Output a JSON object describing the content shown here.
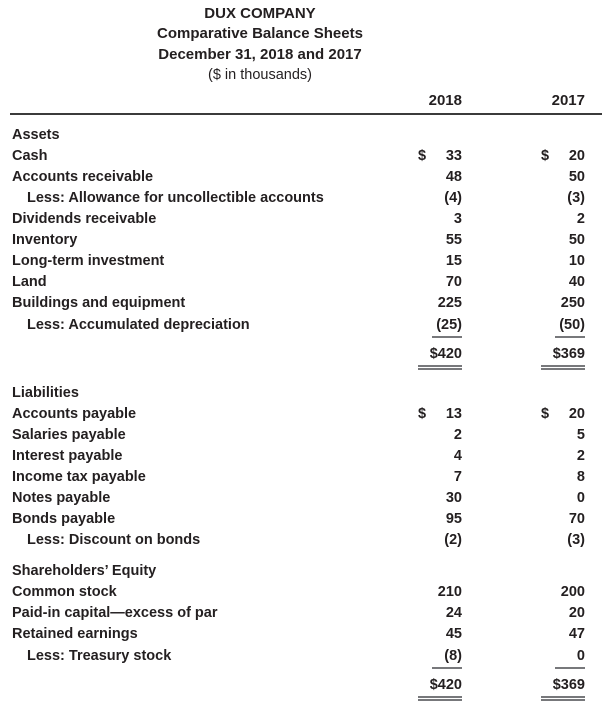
{
  "currency_symbol": "$",
  "header": {
    "company": "DUX COMPANY",
    "report_title": "Comparative Balance Sheets",
    "period": "December 31, 2018 and 2017",
    "units": "($ in thousands)",
    "columns": [
      "2018",
      "2017"
    ]
  },
  "colors": {
    "text": "#231f20",
    "header_rule": "#3b3b3b",
    "amount_rule": "#77787b"
  },
  "sections": [
    {
      "name": "Assets",
      "rows": [
        {
          "label": "Cash",
          "v2018": "33",
          "v2017": "20",
          "dollar": true
        },
        {
          "label": "Accounts receivable",
          "v2018": "48",
          "v2017": "50"
        },
        {
          "label": "Less: Allowance for uncollectible accounts",
          "indent": true,
          "v2018": "(4)",
          "v2017": "(3)"
        },
        {
          "label": "Dividends receivable",
          "v2018": "3",
          "v2017": "2"
        },
        {
          "label": "Inventory",
          "v2018": "55",
          "v2017": "50"
        },
        {
          "label": "Long-term investment",
          "v2018": "15",
          "v2017": "10"
        },
        {
          "label": "Land",
          "v2018": "70",
          "v2017": "40"
        },
        {
          "label": "Buildings and equipment",
          "v2018": "225",
          "v2017": "250"
        },
        {
          "label": "Less: Accumulated depreciation",
          "indent": true,
          "v2018": "(25)",
          "v2017": "(50)",
          "underline": true
        }
      ],
      "total": {
        "v2018": "$420",
        "v2017": "$369"
      }
    },
    {
      "name": "Liabilities",
      "rows": [
        {
          "label": "Accounts payable",
          "v2018": "13",
          "v2017": "20",
          "dollar": true
        },
        {
          "label": "Salaries payable",
          "v2018": "2",
          "v2017": "5"
        },
        {
          "label": "Interest payable",
          "v2018": "4",
          "v2017": "2"
        },
        {
          "label": "Income tax payable",
          "v2018": "7",
          "v2017": "8"
        },
        {
          "label": "Notes payable",
          "v2018": "30",
          "v2017": "0"
        },
        {
          "label": "Bonds payable",
          "v2018": "95",
          "v2017": "70"
        },
        {
          "label": "Less: Discount on bonds",
          "indent": true,
          "v2018": "(2)",
          "v2017": "(3)"
        }
      ]
    },
    {
      "name": "Shareholders’ Equity",
      "rows": [
        {
          "label": "Common stock",
          "v2018": "210",
          "v2017": "200"
        },
        {
          "label": "Paid-in capital—excess of par",
          "v2018": "24",
          "v2017": "20"
        },
        {
          "label": "Retained earnings",
          "v2018": "45",
          "v2017": "47"
        },
        {
          "label": "Less: Treasury stock",
          "indent": true,
          "v2018": "(8)",
          "v2017": "0",
          "underline": true
        }
      ],
      "total": {
        "v2018": "$420",
        "v2017": "$369"
      }
    }
  ]
}
